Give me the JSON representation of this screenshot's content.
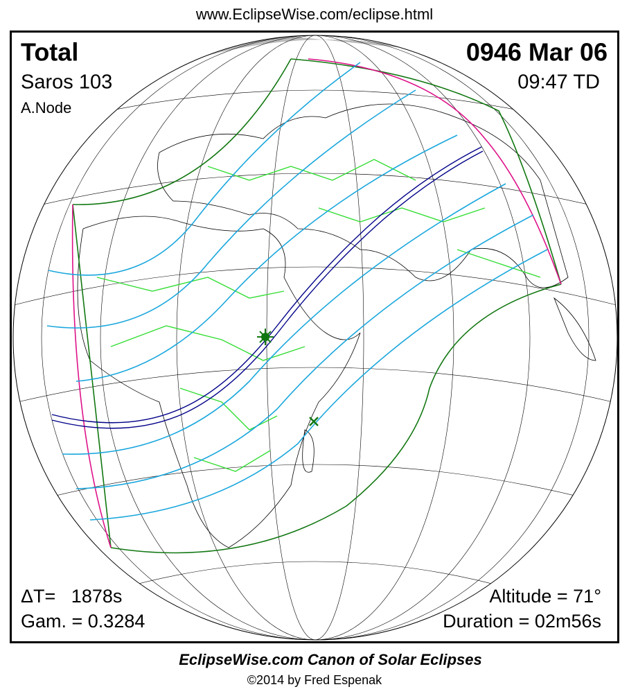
{
  "header": {
    "url": "www.EclipseWise.com/eclipse.html"
  },
  "panel": {
    "eclipse_type": "Total",
    "saros": "Saros 103",
    "node": "A.Node",
    "date": "0946 Mar 06",
    "time": "09:47 TD",
    "delta_t": "ΔT=   1878s",
    "gamma": "Gam. = 0.3284",
    "altitude": "Altitude = 71°",
    "duration": "Duration = 02m56s"
  },
  "footer": {
    "title": "EclipseWise.com Canon of Solar Eclipses",
    "credit": "©2014 by Fred Espenak"
  }
}
